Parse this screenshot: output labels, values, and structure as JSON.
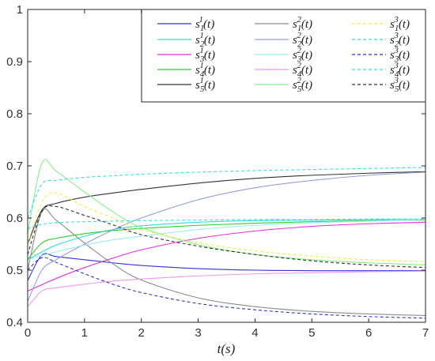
{
  "chart_data": {
    "type": "line",
    "xlabel": "t(s)",
    "ylabel": "",
    "xlim": [
      0,
      7
    ],
    "ylim": [
      0.4,
      1.0
    ],
    "grid": false,
    "legend": {
      "placement": "top-right",
      "columns": 3
    },
    "x_ticks": [
      "0",
      "1",
      "2",
      "3",
      "4",
      "5",
      "6",
      "7"
    ],
    "y_ticks": [
      "0.4",
      "0.5",
      "0.6",
      "0.7",
      "0.8",
      "0.9",
      "1"
    ],
    "x": [
      0,
      0.25,
      0.5,
      1,
      1.5,
      2,
      3,
      4,
      5,
      6,
      7
    ],
    "series": [
      {
        "name": "s_1^1(t)",
        "base": "s",
        "sub": "1",
        "sup": "1",
        "color": "#3333dd",
        "dash": "solid",
        "values": [
          0.48,
          0.529,
          0.526,
          0.52,
          0.514,
          0.509,
          0.503,
          0.5,
          0.499,
          0.499,
          0.499
        ]
      },
      {
        "name": "s_2^1(t)",
        "base": "s",
        "sub": "2",
        "sup": "1",
        "color": "#33dddd",
        "dash": "solid",
        "values": [
          0.52,
          0.535,
          0.548,
          0.565,
          0.578,
          0.585,
          0.592,
          0.595,
          0.596,
          0.597,
          0.597
        ]
      },
      {
        "name": "s_3^1(t)",
        "base": "s",
        "sub": "3",
        "sup": "1",
        "color": "#dd33dd",
        "dash": "solid",
        "values": [
          0.46,
          0.472,
          0.484,
          0.505,
          0.523,
          0.539,
          0.561,
          0.575,
          0.584,
          0.589,
          0.592
        ]
      },
      {
        "name": "s_4^1(t)",
        "base": "s",
        "sub": "4",
        "sup": "1",
        "color": "#33cc33",
        "dash": "solid",
        "values": [
          0.52,
          0.552,
          0.561,
          0.57,
          0.576,
          0.58,
          0.586,
          0.59,
          0.593,
          0.595,
          0.596
        ]
      },
      {
        "name": "s_5^1(t)",
        "base": "s",
        "sub": "5",
        "sup": "1",
        "color": "#333333",
        "dash": "solid",
        "values": [
          0.55,
          0.615,
          0.628,
          0.64,
          0.648,
          0.655,
          0.667,
          0.676,
          0.682,
          0.686,
          0.689
        ]
      },
      {
        "name": "s_1^2(t)",
        "base": "s",
        "sub": "1",
        "sup": "2",
        "color": "#8c8c8c",
        "dash": "solid",
        "values": [
          0.5,
          0.612,
          0.596,
          0.552,
          0.512,
          0.481,
          0.447,
          0.43,
          0.421,
          0.416,
          0.413
        ]
      },
      {
        "name": "s_2^2(t)",
        "base": "s",
        "sub": "2",
        "sup": "2",
        "color": "#9999ee",
        "dash": "solid",
        "values": [
          0.44,
          0.5,
          0.52,
          0.55,
          0.577,
          0.6,
          0.635,
          0.658,
          0.672,
          0.682,
          0.688
        ]
      },
      {
        "name": "s_3^2(t)",
        "base": "s",
        "sub": "3",
        "sup": "2",
        "color": "#99eeee",
        "dash": "solid",
        "values": [
          0.52,
          0.528,
          0.535,
          0.548,
          0.558,
          0.565,
          0.578,
          0.586,
          0.591,
          0.594,
          0.597
        ]
      },
      {
        "name": "s_4^2(t)",
        "base": "s",
        "sub": "4",
        "sup": "2",
        "color": "#ee99ee",
        "dash": "solid",
        "values": [
          0.43,
          0.46,
          0.466,
          0.473,
          0.479,
          0.483,
          0.489,
          0.493,
          0.495,
          0.497,
          0.498
        ]
      },
      {
        "name": "s_5^2(t)",
        "base": "s",
        "sub": "5",
        "sup": "2",
        "color": "#88ee88",
        "dash": "solid",
        "values": [
          0.57,
          0.705,
          0.69,
          0.65,
          0.612,
          0.582,
          0.549,
          0.53,
          0.52,
          0.514,
          0.51
        ]
      },
      {
        "name": "s_1^3(t)",
        "base": "s",
        "sub": "1",
        "sup": "3",
        "color": "#eeee44",
        "dash": "dashed",
        "values": [
          0.55,
          0.63,
          0.648,
          0.622,
          0.6,
          0.578,
          0.553,
          0.537,
          0.527,
          0.52,
          0.516
        ]
      },
      {
        "name": "s_2^3(t)",
        "base": "s",
        "sub": "2",
        "sup": "3",
        "color": "#33dddd",
        "dash": "dashed",
        "values": [
          0.6,
          0.665,
          0.672,
          0.678,
          0.681,
          0.684,
          0.688,
          0.691,
          0.693,
          0.695,
          0.697
        ]
      },
      {
        "name": "s_3^3(t)",
        "base": "s",
        "sub": "3",
        "sup": "3",
        "color": "#3333cc",
        "dash": "dashed",
        "values": [
          0.5,
          0.524,
          0.515,
          0.493,
          0.473,
          0.457,
          0.436,
          0.424,
          0.416,
          0.411,
          0.408
        ]
      },
      {
        "name": "s_4^3(t)",
        "base": "s",
        "sub": "4",
        "sup": "3",
        "color": "#33dddd",
        "dash": "dashed",
        "values": [
          0.58,
          0.588,
          0.591,
          0.593,
          0.594,
          0.595,
          0.596,
          0.597,
          0.597,
          0.598,
          0.598
        ]
      },
      {
        "name": "s_5^3(t)",
        "base": "s",
        "sub": "5",
        "sup": "3",
        "color": "#333333",
        "dash": "dashed",
        "values": [
          0.53,
          0.612,
          0.622,
          0.605,
          0.587,
          0.568,
          0.546,
          0.53,
          0.518,
          0.51,
          0.505
        ]
      }
    ]
  }
}
